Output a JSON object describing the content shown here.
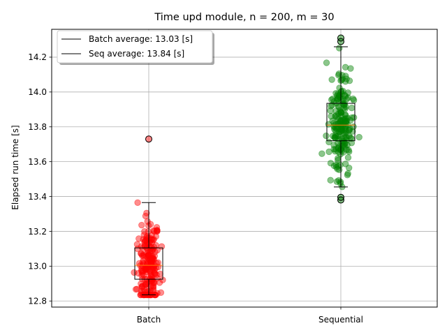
{
  "chart_data": {
    "type": "box-strip",
    "title": "Time upd module, n = 200, m = 30",
    "xlabel": "",
    "ylabel": "Elapsed run time [s]",
    "categories": [
      "Batch",
      "Sequential"
    ],
    "ylim": [
      12.765,
      14.36
    ],
    "yticks": [
      "12.8",
      "13.0",
      "13.2",
      "13.4",
      "13.6",
      "13.8",
      "14.0",
      "14.2"
    ],
    "grid": true,
    "legend": {
      "placement": "top-left",
      "entries": [
        "Batch average: 13.03 [s]",
        "Seq average: 13.84 [s]"
      ]
    },
    "series": [
      {
        "category": "Batch",
        "color": "#ff0000",
        "n_points": 200,
        "average": 13.03,
        "box": {
          "whisker_low": 12.835,
          "q1": 12.925,
          "median": 13.005,
          "q3": 13.105,
          "whisker_high": 13.365
        },
        "outliers": [
          13.73
        ]
      },
      {
        "category": "Sequential",
        "color": "#008000",
        "n_points": 200,
        "average": 13.84,
        "box": {
          "whisker_low": 13.455,
          "q1": 13.72,
          "median": 13.81,
          "q3": 13.935,
          "whisker_high": 14.26
        },
        "outliers": [
          14.29,
          14.31,
          13.38,
          13.395
        ]
      }
    ],
    "colors": {
      "median": "#ff7f0e",
      "grid": "#b0b0b0"
    }
  }
}
